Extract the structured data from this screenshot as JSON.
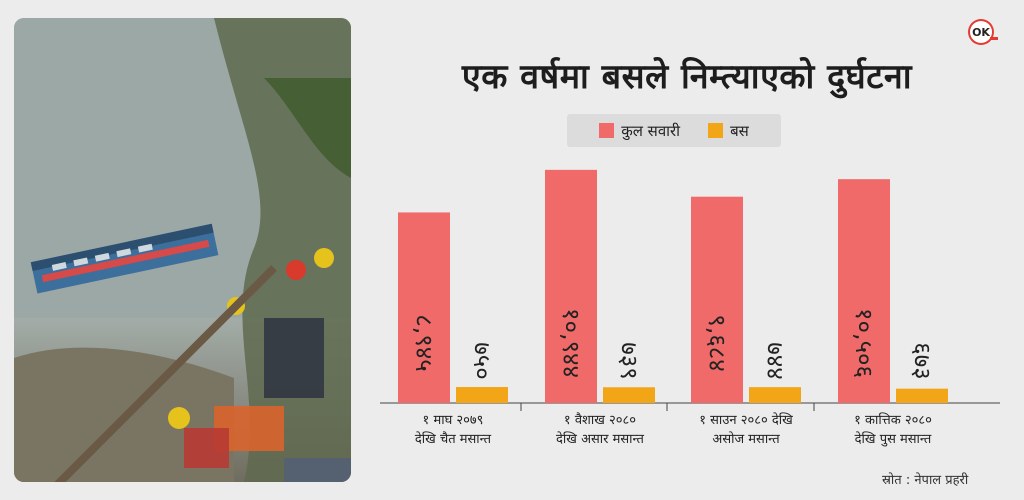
{
  "brand": {
    "logo_text": "OK",
    "accent": "#e23b32"
  },
  "chart_data": {
    "type": "bar",
    "title": "एक वर्षमा बसले निम्त्याएको दुर्घटना",
    "categories": [
      [
        "१ माघ २०७९",
        "देखि चैत मसान्त"
      ],
      [
        "१ वैशाख २०८०",
        "देखि असार मसान्त"
      ],
      [
        "१ साउन २०८० देखि",
        "असोज मसान्त"
      ],
      [
        "१ कात्तिक २०८०",
        "देखि पुस मसान्त"
      ]
    ],
    "series": [
      {
        "name": "कुल सवारी",
        "color": "#f06a6a",
        "values": [
          8945,
          10944,
          9684,
          10506
        ],
        "labels": [
          "८,९४५",
          "१०,९४४",
          "९,६८४",
          "१०,५०६"
        ]
      },
      {
        "name": "बस",
        "color": "#f2a516",
        "values": [
          750,
          739,
          744,
          673
        ],
        "labels": [
          "७५०",
          "७३९",
          "७४४",
          "६७३"
        ]
      }
    ],
    "ylim": [
      0,
      11500
    ]
  },
  "source": "स्रोत : नेपाल प्रहरी"
}
